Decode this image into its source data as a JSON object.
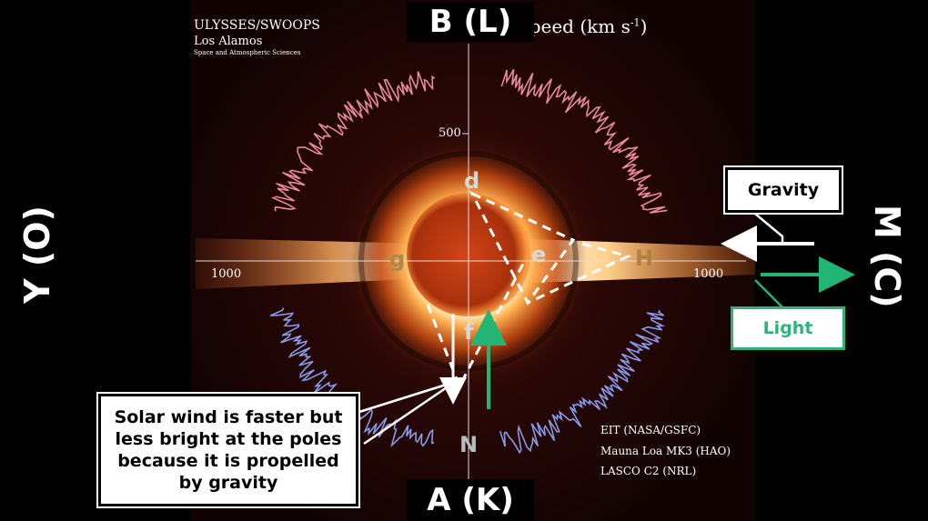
{
  "labels": {
    "top": "B (L)",
    "bottom": "A (K)",
    "left": "Y (O)",
    "right": "M (C)"
  },
  "header": {
    "title": "ULYSSES/SWOOPS",
    "org": "Los Alamos",
    "dept": "Space and Atmospheric Sciences",
    "speed_label": "Speed (km s",
    "speed_exp": "-1",
    "speed_close": ")"
  },
  "axis": {
    "tick_500": "500",
    "left_1000": "1000",
    "right_1000": "1000"
  },
  "points": {
    "d": "d",
    "e": "e",
    "f": "f",
    "g": "g",
    "H": "H",
    "N": "N"
  },
  "credits": {
    "line1": "EIT (NASA/GSFC)",
    "line2": "Mauna Loa MK3 (HAO)",
    "line3": "LASCO C2 (NRL)"
  },
  "callout": {
    "text": "Solar wind is faster but less bright at the poles because it is propelled by gravity"
  },
  "boxes": {
    "gravity": "Gravity",
    "light": "Light"
  },
  "colors": {
    "background": "#000000",
    "arrow_green": "#22b573",
    "sun": "#c83a10",
    "corona": "#ff9a3a"
  }
}
